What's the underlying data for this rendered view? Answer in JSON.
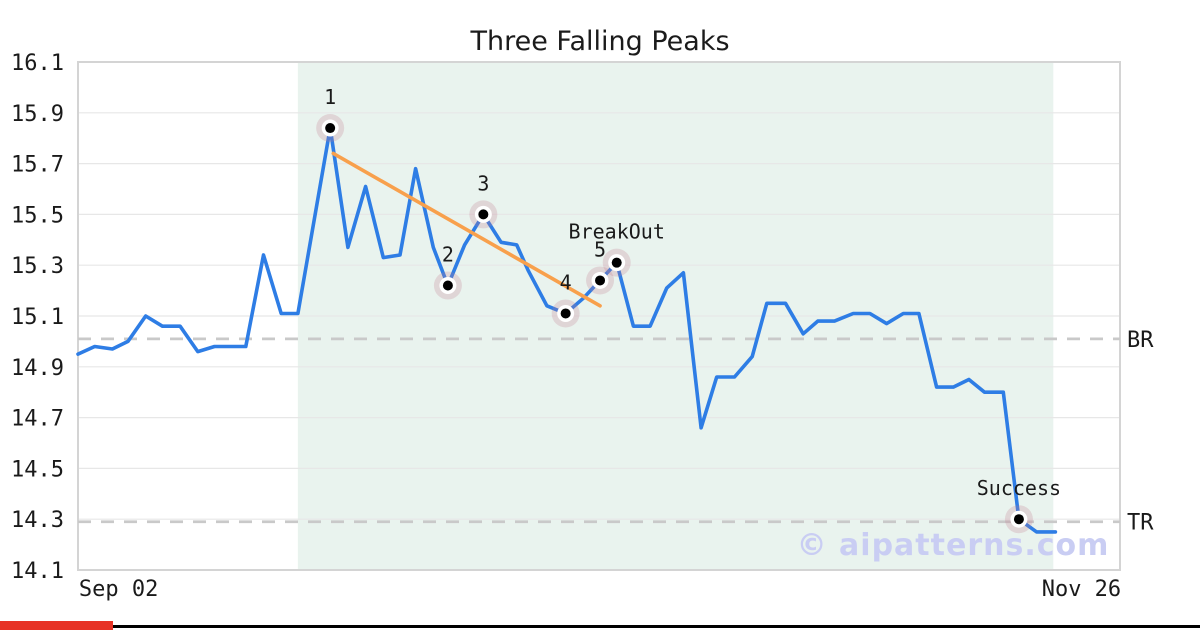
{
  "chart_data": {
    "type": "line",
    "title": "Three Falling Peaks",
    "watermark": "© aipatterns.com",
    "y_axis": {
      "min": 14.1,
      "max": 16.1,
      "ticks": [
        16.1,
        15.9,
        15.7,
        15.5,
        15.3,
        15.1,
        14.9,
        14.7,
        14.5,
        14.3,
        14.1
      ]
    },
    "x_axis": {
      "labels": [
        {
          "text": "Sep 02",
          "pos": 0.039
        },
        {
          "text": "Nov 26",
          "pos": 0.963
        }
      ]
    },
    "series": [
      {
        "name": "price",
        "color": "#2e7de5",
        "points": [
          [
            0.0,
            14.95
          ],
          [
            0.016,
            14.98
          ],
          [
            0.033,
            14.97
          ],
          [
            0.048,
            15.0
          ],
          [
            0.065,
            15.1
          ],
          [
            0.081,
            15.06
          ],
          [
            0.098,
            15.06
          ],
          [
            0.115,
            14.96
          ],
          [
            0.131,
            14.98
          ],
          [
            0.161,
            14.98
          ],
          [
            0.178,
            15.34
          ],
          [
            0.195,
            15.11
          ],
          [
            0.211,
            15.11
          ],
          [
            0.242,
            15.84
          ],
          [
            0.259,
            15.37
          ],
          [
            0.276,
            15.61
          ],
          [
            0.293,
            15.33
          ],
          [
            0.309,
            15.34
          ],
          [
            0.324,
            15.68
          ],
          [
            0.341,
            15.37
          ],
          [
            0.355,
            15.22
          ],
          [
            0.371,
            15.38
          ],
          [
            0.389,
            15.5
          ],
          [
            0.406,
            15.39
          ],
          [
            0.421,
            15.38
          ],
          [
            0.432,
            15.28
          ],
          [
            0.45,
            15.14
          ],
          [
            0.468,
            15.11
          ],
          [
            0.485,
            15.17
          ],
          [
            0.501,
            15.24
          ],
          [
            0.517,
            15.31
          ],
          [
            0.533,
            15.06
          ],
          [
            0.549,
            15.06
          ],
          [
            0.565,
            15.21
          ],
          [
            0.581,
            15.27
          ],
          [
            0.598,
            14.66
          ],
          [
            0.613,
            14.86
          ],
          [
            0.63,
            14.86
          ],
          [
            0.647,
            14.94
          ],
          [
            0.661,
            15.15
          ],
          [
            0.679,
            15.15
          ],
          [
            0.696,
            15.03
          ],
          [
            0.71,
            15.08
          ],
          [
            0.726,
            15.08
          ],
          [
            0.744,
            15.11
          ],
          [
            0.76,
            15.11
          ],
          [
            0.776,
            15.07
          ],
          [
            0.792,
            15.11
          ],
          [
            0.807,
            15.11
          ],
          [
            0.824,
            14.82
          ],
          [
            0.84,
            14.82
          ],
          [
            0.855,
            14.85
          ],
          [
            0.87,
            14.8
          ],
          [
            0.888,
            14.8
          ],
          [
            0.903,
            14.3
          ],
          [
            0.92,
            14.25
          ],
          [
            0.938,
            14.25
          ]
        ]
      }
    ],
    "trendline": {
      "color": "#f8a04c",
      "from": [
        0.245,
        15.74
      ],
      "to": [
        0.501,
        15.14
      ]
    },
    "levels": [
      {
        "label": "BR",
        "value": 15.01
      },
      {
        "label": "TR",
        "value": 14.29
      }
    ],
    "pattern_region": {
      "from": 0.211,
      "to": 0.936,
      "color": "#e9f3ee"
    },
    "annotations": [
      {
        "label": "1",
        "point": 13
      },
      {
        "label": "2",
        "point": 20
      },
      {
        "label": "3",
        "point": 22
      },
      {
        "label": "4",
        "point": 27
      },
      {
        "label": "5",
        "point": 29
      },
      {
        "label": "BreakOut",
        "point": 30
      },
      {
        "label": "Success",
        "point": 54
      }
    ],
    "colors": {
      "grid": "#e7e7e7",
      "frame": "#d4d4d4",
      "level_line": "#c9c9c9",
      "dot": "#000000",
      "halo": "rgba(195,125,145,0.25)",
      "text": "#1a1a1a",
      "watermark": "#c9cdf3",
      "footer_bar": "#e73225",
      "footer_line": "#000000"
    }
  }
}
